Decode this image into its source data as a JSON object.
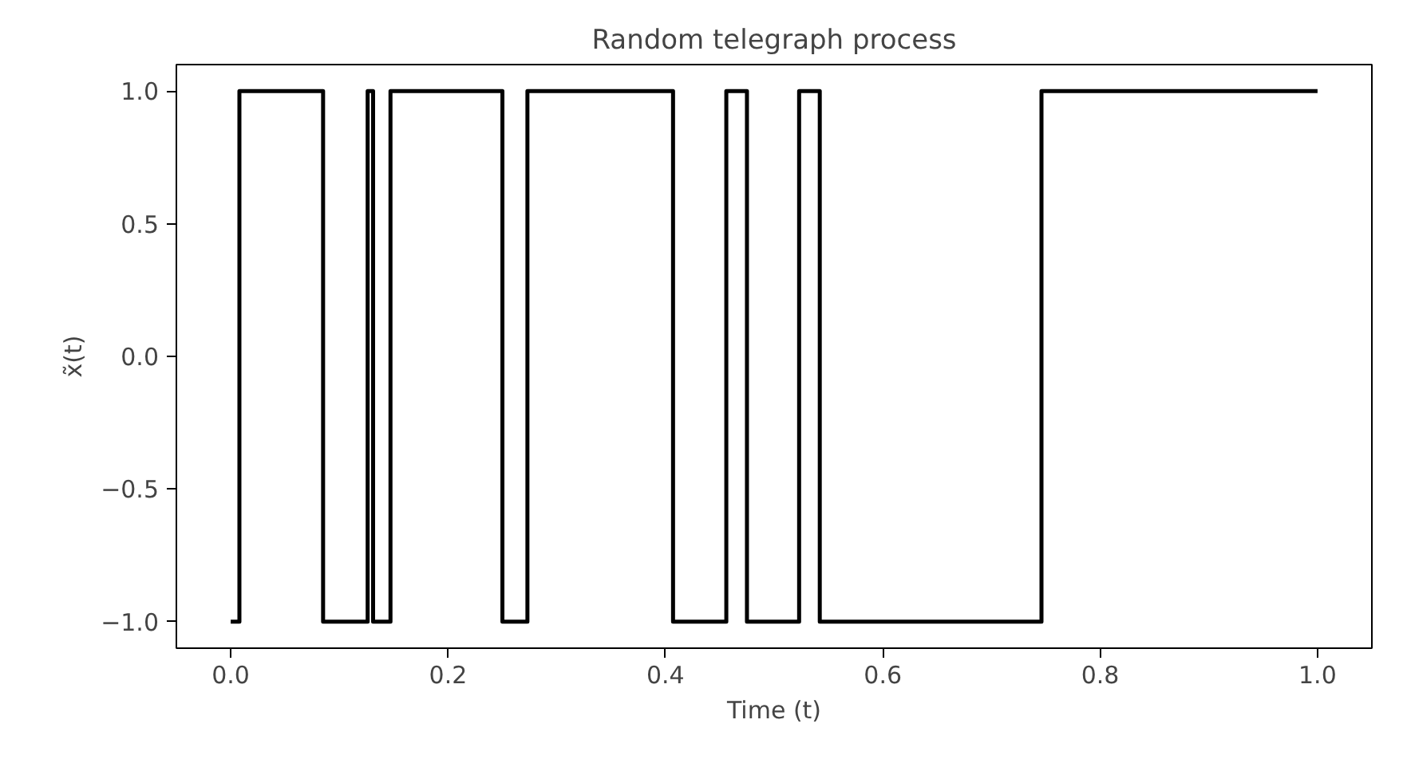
{
  "chart_data": {
    "type": "step",
    "title": "Random telegraph process",
    "xlabel": "Time (t)",
    "ylabel": "x̃(t)",
    "x": [
      0,
      0.008,
      0.085,
      0.126,
      0.131,
      0.147,
      0.25,
      0.273,
      0.407,
      0.456,
      0.475,
      0.523,
      0.542,
      0.746,
      1.0
    ],
    "series": [
      {
        "color": "#000000",
        "values": [
          -1,
          1,
          -1,
          1,
          -1,
          1,
          -1,
          1,
          -1,
          1,
          -1,
          1,
          -1,
          1,
          1
        ]
      }
    ],
    "xlim": [
      -0.05,
      1.05
    ],
    "ylim": [
      -1.1,
      1.1
    ],
    "xticks": [
      {
        "value": 0,
        "label": "0.0"
      },
      0.2,
      0.4,
      0.6,
      0.8,
      {
        "value": 1,
        "label": "1.0"
      }
    ],
    "yticks": [
      {
        "value": -1,
        "label": "−1.0"
      },
      {
        "value": -0.5,
        "label": "−0.5"
      },
      {
        "value": 0,
        "label": "0.0"
      },
      0.5,
      {
        "value": 1,
        "label": "1.0"
      }
    ],
    "grid": false,
    "marker": "none",
    "line_style": "solid"
  }
}
